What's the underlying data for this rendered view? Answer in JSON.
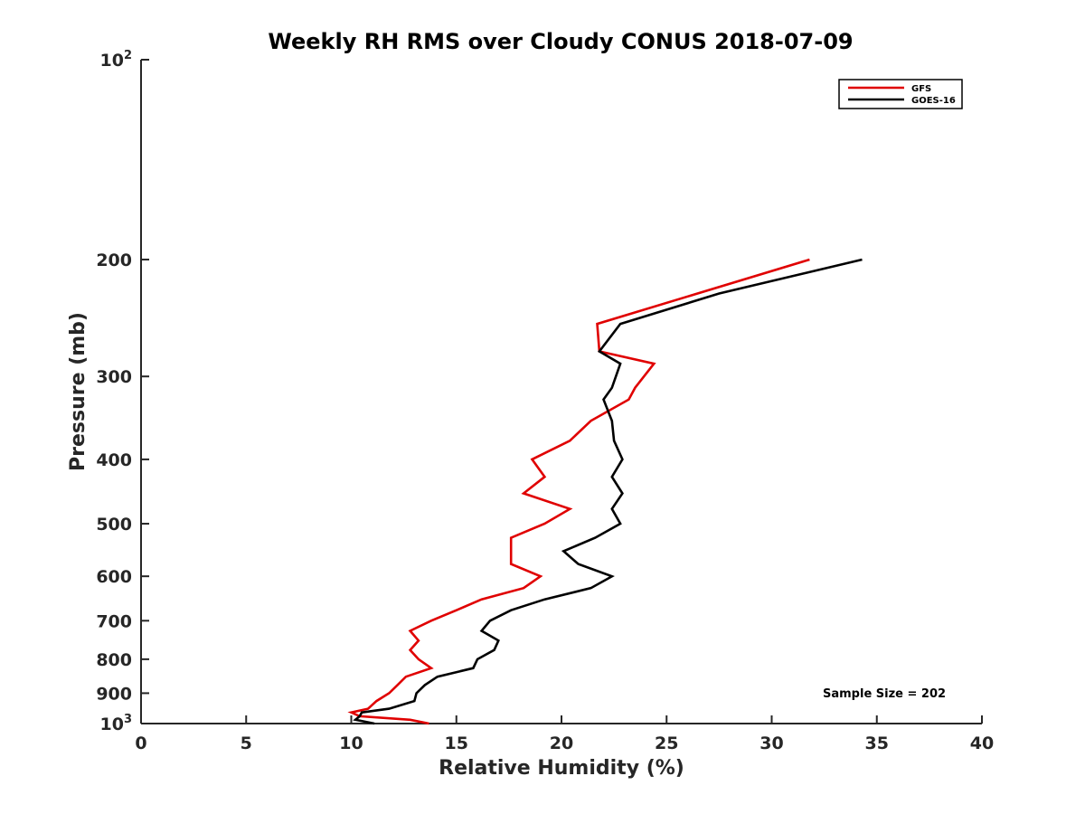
{
  "chart_data": {
    "type": "line",
    "title": "Weekly RH RMS over Cloudy CONUS 2018-07-09",
    "xlabel": "Relative Humidity (%)",
    "ylabel": "Pressure (mb)",
    "xlim": [
      0,
      40
    ],
    "ylim": [
      1000,
      100
    ],
    "y_scale": "log-reversed",
    "x_ticks": [
      0,
      5,
      10,
      15,
      20,
      25,
      30,
      35,
      40
    ],
    "y_ticks": [
      {
        "value": 100,
        "base": "10",
        "exp": "2"
      },
      {
        "value": 200,
        "label": "200"
      },
      {
        "value": 300,
        "label": "300"
      },
      {
        "value": 400,
        "label": "400"
      },
      {
        "value": 500,
        "label": "500"
      },
      {
        "value": 600,
        "label": "600"
      },
      {
        "value": 700,
        "label": "700"
      },
      {
        "value": 800,
        "label": "800"
      },
      {
        "value": 900,
        "label": "900"
      },
      {
        "value": 1000,
        "base": "10",
        "exp": "3"
      }
    ],
    "grid": false,
    "legend_position": "top-right",
    "series": [
      {
        "name": "GFS",
        "color": "#e00000",
        "points": [
          [
            31.8,
            200
          ],
          [
            21.7,
            250
          ],
          [
            21.8,
            275
          ],
          [
            24.4,
            287
          ],
          [
            23.5,
            312
          ],
          [
            23.2,
            325
          ],
          [
            21.4,
            350
          ],
          [
            20.4,
            375
          ],
          [
            18.6,
            400
          ],
          [
            19.2,
            425
          ],
          [
            18.2,
            450
          ],
          [
            20.4,
            475
          ],
          [
            19.2,
            500
          ],
          [
            17.6,
            525
          ],
          [
            17.6,
            575
          ],
          [
            19.0,
            600
          ],
          [
            18.2,
            625
          ],
          [
            16.2,
            650
          ],
          [
            15.0,
            675
          ],
          [
            13.8,
            700
          ],
          [
            12.8,
            725
          ],
          [
            13.2,
            750
          ],
          [
            12.8,
            775
          ],
          [
            13.2,
            800
          ],
          [
            13.8,
            825
          ],
          [
            12.6,
            850
          ],
          [
            12.2,
            875
          ],
          [
            11.8,
            900
          ],
          [
            11.2,
            925
          ],
          [
            10.8,
            950
          ],
          [
            10.0,
            962
          ],
          [
            10.4,
            975
          ],
          [
            12.8,
            987
          ],
          [
            13.7,
            1000
          ]
        ]
      },
      {
        "name": "GOES-16",
        "color": "#000000",
        "points": [
          [
            34.3,
            200
          ],
          [
            27.5,
            225
          ],
          [
            22.8,
            250
          ],
          [
            21.8,
            275
          ],
          [
            22.8,
            287
          ],
          [
            22.4,
            312
          ],
          [
            22.0,
            325
          ],
          [
            22.4,
            350
          ],
          [
            22.5,
            375
          ],
          [
            22.9,
            400
          ],
          [
            22.4,
            425
          ],
          [
            22.9,
            450
          ],
          [
            22.4,
            475
          ],
          [
            22.8,
            500
          ],
          [
            21.6,
            525
          ],
          [
            20.1,
            550
          ],
          [
            20.8,
            575
          ],
          [
            22.4,
            600
          ],
          [
            21.4,
            625
          ],
          [
            19.2,
            650
          ],
          [
            17.6,
            675
          ],
          [
            16.6,
            700
          ],
          [
            16.2,
            725
          ],
          [
            17.0,
            750
          ],
          [
            16.8,
            775
          ],
          [
            16.0,
            800
          ],
          [
            15.8,
            825
          ],
          [
            14.1,
            850
          ],
          [
            13.5,
            875
          ],
          [
            13.1,
            900
          ],
          [
            13.0,
            925
          ],
          [
            11.8,
            950
          ],
          [
            10.5,
            962
          ],
          [
            10.4,
            975
          ],
          [
            10.2,
            987
          ],
          [
            11.1,
            1000
          ]
        ]
      }
    ],
    "annotations": [
      "Sample Size = 202"
    ]
  }
}
